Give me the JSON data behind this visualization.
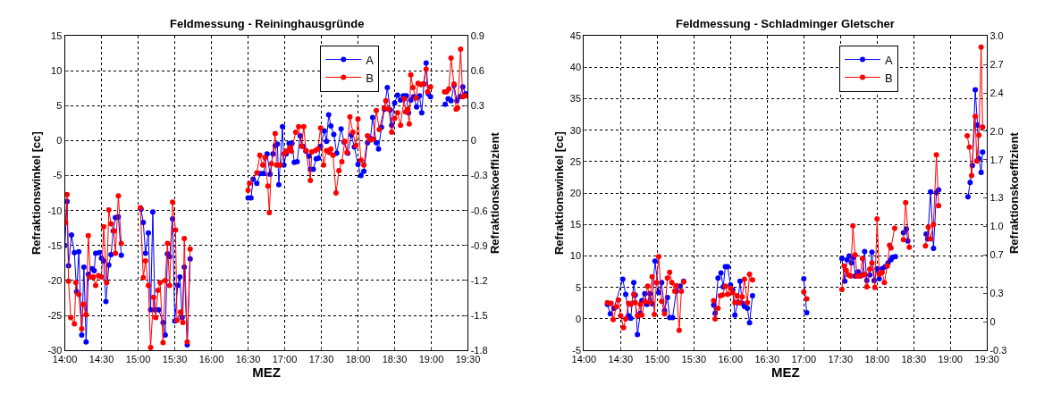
{
  "chart_data": [
    {
      "type": "line",
      "title": "Feldmessung - Reininghausgründe",
      "xlabel": "MEZ",
      "ylabel": "Refraktionswinkel [cc]",
      "y2label": "Refraktionskoeffizient",
      "xlim": [
        14,
        19.5
      ],
      "xticks": [
        {
          "value": 14,
          "label": "14:00"
        },
        {
          "value": 14.5,
          "label": "14:30"
        },
        {
          "value": 15,
          "label": "15:00"
        },
        {
          "value": 15.5,
          "label": "15:30"
        },
        {
          "value": 16,
          "label": "16:00"
        },
        {
          "value": 16.5,
          "label": "16:30"
        },
        {
          "value": 17,
          "label": "17:00"
        },
        {
          "value": 17.5,
          "label": "17:30"
        },
        {
          "value": 18,
          "label": "18:00"
        },
        {
          "value": 18.5,
          "label": "18:30"
        },
        {
          "value": 19,
          "label": "19:00"
        },
        {
          "value": 19.5,
          "label": "19:30"
        }
      ],
      "ylim": [
        -30,
        15
      ],
      "yticks": [
        -30,
        -25,
        -20,
        -15,
        -10,
        -5,
        0,
        5,
        10,
        15
      ],
      "y2lim": [
        -1.8,
        0.9
      ],
      "y2ticks": [
        -1.8,
        -1.5,
        -1.2,
        -0.9,
        -0.6,
        -0.3,
        0,
        0.3,
        0.6,
        0.9
      ],
      "grid": true,
      "legend": "top right",
      "marker": "circle",
      "series": [
        {
          "name": "A",
          "color": "#0000ff",
          "x": [
            14.0,
            14.03,
            14.05,
            14.09,
            14.13,
            14.16,
            14.19,
            14.23,
            14.26,
            14.29,
            14.32,
            14.37,
            14.4,
            14.42,
            14.47,
            14.5,
            14.53,
            14.56,
            14.6,
            14.63,
            14.66,
            14.69,
            14.73,
            14.77,
            14.9,
            15.04,
            15.07,
            15.1,
            15.14,
            15.17,
            15.2,
            15.23,
            15.28,
            15.34,
            15.37,
            15.4,
            15.43,
            15.47,
            15.5,
            15.54,
            15.57,
            15.6,
            15.63,
            15.67,
            15.71,
            16.1,
            16.5,
            16.54,
            16.57,
            16.62,
            16.67,
            16.71,
            16.76,
            16.8,
            16.84,
            16.87,
            16.9,
            16.92,
            16.97,
            16.99,
            17.02,
            17.06,
            17.1,
            17.13,
            17.17,
            17.21,
            17.25,
            17.29,
            17.33,
            17.35,
            17.39,
            17.43,
            17.46,
            17.49,
            17.54,
            17.57,
            17.6,
            17.63,
            17.67,
            17.71,
            17.77,
            17.81,
            17.86,
            17.91,
            17.95,
            18.0,
            18.04,
            18.08,
            18.13,
            18.17,
            18.2,
            18.25,
            18.28,
            18.32,
            18.36,
            18.4,
            18.44,
            18.46,
            18.5,
            18.54,
            18.58,
            18.62,
            18.66,
            18.69,
            18.72,
            18.76,
            18.8,
            18.84,
            18.87,
            18.9,
            18.93,
            18.96,
            18.99,
            19.1,
            19.19,
            19.23,
            19.27,
            19.31,
            19.35,
            19.39,
            19.43,
            19.47
          ],
          "values": [
            -15,
            -8.7,
            -17.9,
            -13.5,
            -16,
            -21.6,
            -15.9,
            -27.8,
            -18.1,
            -28.8,
            -19.1,
            -18.3,
            -18.6,
            -16.1,
            -16,
            -16.8,
            -17.2,
            -23,
            -17.8,
            -16.3,
            -12.9,
            -11,
            -10.9,
            -16.4,
            null,
            -9.8,
            -11.7,
            -16.1,
            -13.2,
            -24.2,
            -10.2,
            -24.2,
            -24.2,
            -26,
            -27.8,
            -16.2,
            -16.6,
            -11.2,
            -25.8,
            -20.7,
            -19.5,
            -25.3,
            -18.1,
            -29.2,
            -16.9,
            null,
            -8.2,
            -8.2,
            -5.5,
            -6.1,
            -4.7,
            -4.7,
            -1.9,
            -4.8,
            -1.9,
            -0.7,
            -0.5,
            -6.3,
            2,
            -3.5,
            -1.9,
            -0.4,
            -0.4,
            -3.1,
            -3,
            0.7,
            -0.8,
            -1.5,
            -2.2,
            -4.1,
            -4.1,
            -2.6,
            -2.5,
            -0.8,
            1.4,
            -0.1,
            3.7,
            2.1,
            0.9,
            -1.8,
            1.7,
            -0.2,
            -1.8,
            0.8,
            -0.9,
            -3.4,
            -5,
            -4.4,
            -0.3,
            0.3,
            3.3,
            -0.3,
            -1.2,
            1.9,
            4.5,
            7.6,
            4.4,
            2.2,
            5.4,
            6.5,
            5.8,
            6.4,
            6.4,
            4,
            5.8,
            6.3,
            4.8,
            6.4,
            4,
            8.1,
            11.1,
            6.7,
            6.3,
            null,
            5.2,
            6,
            5.7,
            7.9,
            5.7,
            6.3,
            7.7,
            6.7
          ]
        },
        {
          "name": "B",
          "color": "#ff0000",
          "x": [
            14.01,
            14.03,
            14.05,
            14.08,
            14.13,
            14.15,
            14.19,
            14.23,
            14.25,
            14.29,
            14.32,
            14.35,
            14.39,
            14.42,
            14.46,
            14.5,
            14.53,
            14.57,
            14.6,
            14.63,
            14.67,
            14.69,
            14.73,
            14.77,
            14.9,
            15.03,
            15.07,
            15.1,
            15.14,
            15.17,
            15.21,
            15.24,
            15.27,
            15.3,
            15.34,
            15.37,
            15.4,
            15.43,
            15.47,
            15.51,
            15.53,
            15.58,
            15.61,
            15.63,
            15.67,
            15.71,
            16.1,
            16.5,
            16.52,
            16.62,
            16.66,
            16.7,
            16.73,
            16.77,
            16.79,
            16.82,
            16.87,
            16.89,
            16.94,
            16.99,
            17.02,
            17.07,
            17.09,
            17.15,
            17.19,
            17.23,
            17.26,
            17.29,
            17.35,
            17.37,
            17.42,
            17.45,
            17.49,
            17.53,
            17.57,
            17.61,
            17.63,
            17.66,
            17.7,
            17.74,
            17.78,
            17.82,
            17.85,
            17.89,
            17.93,
            17.97,
            18.0,
            18.04,
            18.08,
            18.13,
            18.17,
            18.21,
            18.25,
            18.29,
            18.36,
            18.38,
            18.42,
            18.46,
            18.5,
            18.54,
            18.58,
            18.63,
            18.65,
            18.68,
            18.7,
            18.72,
            18.75,
            18.79,
            18.82,
            18.86,
            18.89,
            18.93,
            18.95,
            18.99,
            19.1,
            19.18,
            19.21,
            19.24,
            19.27,
            19.31,
            19.34,
            19.36,
            19.4,
            19.43,
            19.47
          ],
          "values": [
            -11.7,
            -7.7,
            -20.1,
            -25.3,
            -26.2,
            -20.3,
            -22,
            -26.9,
            -23.4,
            -24.9,
            -13.6,
            -19.5,
            -19.5,
            -20.7,
            -19.3,
            -19.5,
            -12.3,
            -20.3,
            -9.9,
            -11.9,
            -12.9,
            -16.1,
            -7.9,
            -14.7,
            null,
            -9.6,
            -19.6,
            -17.2,
            -20.7,
            -29.6,
            -22.4,
            -25.3,
            -21.4,
            -20.3,
            -28.9,
            -20,
            -14.7,
            -20.7,
            -8.8,
            -12.8,
            -25.7,
            -24.5,
            -26,
            -14,
            -28.8,
            -15.5,
            null,
            -7.1,
            -6.1,
            -4.6,
            -2.1,
            -3.5,
            -2.4,
            -6.5,
            -10.3,
            -3.3,
            1,
            -3.5,
            -3.5,
            -1.9,
            -1.5,
            -1,
            -1.5,
            1.2,
            2,
            -0.8,
            2,
            -1.4,
            -5.7,
            -1.6,
            -1.4,
            -1.2,
            1.8,
            -3.5,
            -1.4,
            -1.7,
            -1.2,
            -2.1,
            -7.5,
            -4.3,
            -3,
            -0.1,
            -1.7,
            3.4,
            1.2,
            -0.7,
            3.1,
            -2.8,
            -3.5,
            0.7,
            0.1,
            0.2,
            4.3,
            1.6,
            4.7,
            5.7,
            4.5,
            1.2,
            3.2,
            4,
            2.2,
            6,
            4.1,
            4.5,
            2.4,
            9.4,
            7.6,
            6.1,
            8.2,
            8,
            8.1,
            10.2,
            7,
            7.7,
            null,
            7,
            7,
            7.4,
            11.8,
            8.1,
            4.5,
            4.7,
            13.1,
            6.3,
            6.4
          ]
        }
      ]
    },
    {
      "type": "line",
      "title": "Feldmessung - Schladminger Gletscher",
      "xlabel": "MEZ",
      "ylabel": "Refraktionswinkel [cc]",
      "y2label": "Refraktionskoeffizient",
      "xlim": [
        14,
        19.5
      ],
      "xticks": [
        {
          "value": 14,
          "label": "14:00"
        },
        {
          "value": 14.5,
          "label": "14:30"
        },
        {
          "value": 15,
          "label": "15:00"
        },
        {
          "value": 15.5,
          "label": "15:30"
        },
        {
          "value": 16,
          "label": "16:00"
        },
        {
          "value": 16.5,
          "label": "16:30"
        },
        {
          "value": 17,
          "label": "17:00"
        },
        {
          "value": 17.5,
          "label": "17:30"
        },
        {
          "value": 18,
          "label": "18:00"
        },
        {
          "value": 18.5,
          "label": "18:30"
        },
        {
          "value": 19,
          "label": "19:00"
        },
        {
          "value": 19.5,
          "label": "19:30"
        }
      ],
      "ylim": [
        -5,
        45
      ],
      "yticks": [
        -5,
        0,
        5,
        10,
        15,
        20,
        25,
        30,
        35,
        40,
        45
      ],
      "y2lim": [
        -0.3,
        3.0
      ],
      "y2ticks": [
        -0.3,
        0,
        0.3,
        0.7,
        {
          "value": 1,
          "label": "1.0"
        },
        1.3,
        1.7,
        {
          "value": 2,
          "label": "2.0"
        },
        2.4,
        2.7,
        {
          "value": 3,
          "label": "3.0"
        }
      ],
      "grid": true,
      "legend": "top right",
      "marker": "circle",
      "series": [
        {
          "name": "A",
          "color": "#0000ff",
          "x": [
            14.32,
            14.36,
            14.41,
            14.53,
            14.57,
            14.61,
            14.64,
            14.68,
            14.7,
            14.73,
            14.77,
            14.79,
            14.83,
            14.86,
            14.9,
            14.93,
            14.97,
            15.02,
            15.06,
            15.1,
            15.14,
            15.17,
            15.21,
            15.26,
            15.31,
            15.36,
            15.6,
            15.77,
            15.79,
            15.83,
            15.87,
            15.9,
            15.93,
            15.96,
            16.0,
            16.03,
            16.06,
            16.1,
            16.13,
            16.16,
            16.19,
            16.23,
            16.26,
            16.3,
            16.6,
            17.0,
            17.04,
            17.3,
            17.52,
            17.56,
            17.59,
            17.62,
            17.65,
            17.68,
            17.7,
            17.74,
            17.77,
            17.8,
            17.83,
            17.86,
            17.9,
            17.93,
            17.96,
            18.0,
            18.03,
            18.07,
            18.11,
            18.15,
            18.19,
            18.21,
            18.25,
            18.3,
            18.36,
            18.4,
            18.42,
            18.55,
            18.67,
            18.69,
            18.73,
            18.77,
            18.81,
            18.84,
            19.0,
            19.24,
            19.27,
            19.3,
            19.34,
            19.37,
            19.39,
            19.42,
            19.44
          ],
          "values": [
            2.3,
            0.8,
            1.7,
            6.3,
            3.9,
            0.5,
            0.1,
            5.8,
            3.8,
            -2.5,
            0.9,
            2.9,
            4,
            2.3,
            4,
            2.4,
            9.2,
            4.2,
            5.8,
            1.3,
            3.4,
            0.2,
            0.2,
            4.4,
            5.2,
            6,
            null,
            2.2,
            0.9,
            6.5,
            7.3,
            5.1,
            8.3,
            8.3,
            5.4,
            4.6,
            0.6,
            2.6,
            6,
            2.5,
            2,
            1.7,
            -0.6,
            3.7,
            null,
            6.4,
            1,
            null,
            9.6,
            6,
            9.4,
            10,
            8.9,
            9.8,
            6.8,
            7.5,
            6.8,
            7,
            10.7,
            6.1,
            7,
            10.6,
            6.1,
            8,
            6.4,
            8,
            8.3,
            8.9,
            9.4,
            9.8,
            9.9,
            null,
            13.7,
            14.3,
            12.4,
            null,
            13.5,
            12.7,
            20.2,
            11.2,
            20.1,
            20.5,
            null,
            19.4,
            21.7,
            24.4,
            36.4,
            30.8,
            25.5,
            23.3,
            26.5
          ]
        },
        {
          "name": "B",
          "color": "#ff0000",
          "x": [
            14.32,
            14.37,
            14.4,
            14.44,
            14.47,
            14.5,
            14.54,
            14.57,
            14.61,
            14.64,
            14.68,
            14.7,
            14.73,
            14.77,
            14.79,
            14.83,
            14.87,
            14.9,
            14.93,
            14.96,
            14.99,
            15.02,
            15.06,
            15.1,
            15.14,
            15.17,
            15.2,
            15.24,
            15.26,
            15.3,
            15.33,
            15.36,
            15.6,
            15.77,
            15.79,
            15.83,
            15.86,
            15.89,
            15.93,
            15.96,
            16.0,
            16.03,
            16.06,
            16.09,
            16.13,
            16.16,
            16.19,
            16.23,
            16.26,
            16.3,
            16.6,
            17.0,
            17.04,
            17.3,
            17.52,
            17.55,
            17.58,
            17.61,
            17.64,
            17.67,
            17.7,
            17.73,
            17.77,
            17.8,
            17.83,
            17.86,
            17.9,
            17.93,
            17.97,
            18.0,
            18.03,
            18.07,
            18.1,
            18.14,
            18.17,
            18.19,
            18.24,
            18.3,
            18.36,
            18.39,
            18.44,
            18.55,
            18.66,
            18.7,
            18.73,
            18.77,
            18.81,
            18.84,
            19.0,
            19.23,
            19.26,
            19.29,
            19.34,
            19.36,
            19.39,
            19.42,
            19.44
          ],
          "values": [
            2.6,
            2.5,
            -0.1,
            1.9,
            3,
            0.5,
            -1.4,
            0,
            2.5,
            2.3,
            3.9,
            2.6,
            0.5,
            2.3,
            0.6,
            2.8,
            5.2,
            2.6,
            6.7,
            0.7,
            5.8,
            9.9,
            2.8,
            0.8,
            6.5,
            7.4,
            5.8,
            4.4,
            5.3,
            -1.8,
            4.4,
            5.9,
            null,
            2.9,
            0,
            1.7,
            3.7,
            3.8,
            5.2,
            3.9,
            4.9,
            4.2,
            2.6,
            3.7,
            2.6,
            3.5,
            6.3,
            2.6,
            7.1,
            6.2,
            null,
            4.3,
            3.2,
            null,
            4.7,
            8.4,
            7.7,
            7,
            6.8,
            14.8,
            10.2,
            6.8,
            6.8,
            9.6,
            7.1,
            5.1,
            7.9,
            8.9,
            5,
            15.9,
            7.1,
            7.4,
            5.8,
            8.4,
            11.7,
            11.3,
            14.4,
            null,
            12.6,
            18.5,
            11.4,
            null,
            11.6,
            14.6,
            12.7,
            15,
            26.1,
            18,
            null,
            29.1,
            27.3,
            22.8,
            32.2,
            25.1,
            29.2,
            43.2,
            30.5
          ]
        }
      ]
    }
  ]
}
